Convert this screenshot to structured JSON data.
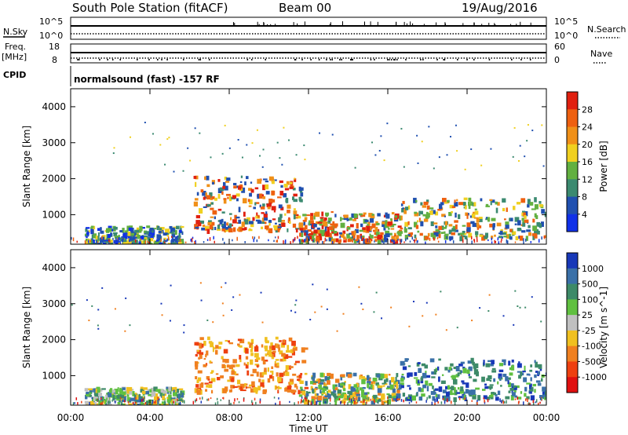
{
  "header": {
    "station": "South Pole Station (fitACF)",
    "beam": "Beam 00",
    "date": "19/Aug/2016"
  },
  "labels": {
    "nsky": "N.Sky",
    "nsearch": "N.Search",
    "freq_line1": "Freq.",
    "freq_line2": "[MHz]",
    "nave": "Nave",
    "cpid": "CPID",
    "program": "normalsound (fast) -157 RF",
    "noise_top": "10^5",
    "noise_bottom": "10^0",
    "freq_top": "18",
    "freq_bottom": "8",
    "nave_top": "60",
    "nave_bottom": "0"
  },
  "chart_data": [
    {
      "type": "heatmap",
      "title": "",
      "xlabel": "Time UT",
      "ylabel": "Slant Range [km]",
      "xlim": [
        0,
        24
      ],
      "ylim": [
        180,
        4500
      ],
      "x_ticks": [
        "00:00",
        "04:00",
        "08:00",
        "12:00",
        "16:00",
        "20:00",
        "00:00"
      ],
      "y_ticks": [
        1000,
        2000,
        3000,
        4000
      ],
      "colorbar": {
        "label": "Power [dB]",
        "ticks": [
          "4",
          "8",
          "12",
          "16",
          "20",
          "24",
          "28"
        ],
        "colors": [
          "#1030e8",
          "#2050b0",
          "#3b8a70",
          "#62b040",
          "#f0d020",
          "#f09018",
          "#ee6010",
          "#e02010"
        ]
      },
      "echo_regions": [
        {
          "time": [
            0.7,
            5.6
          ],
          "range": [
            220,
            700
          ],
          "value": "2-16 dB"
        },
        {
          "time": [
            6.2,
            11.8
          ],
          "range": [
            600,
            2100
          ],
          "value": "16-28 dB"
        },
        {
          "time": [
            11.5,
            16.5
          ],
          "range": [
            300,
            1100
          ],
          "value": "8-24 dB"
        },
        {
          "time": [
            16.5,
            24.0
          ],
          "range": [
            400,
            1500
          ],
          "value": "8-24 dB"
        }
      ]
    },
    {
      "type": "heatmap",
      "title": "",
      "xlabel": "Time UT",
      "ylabel": "Slant Range [km]",
      "xlim": [
        0,
        24
      ],
      "ylim": [
        180,
        4500
      ],
      "x_ticks": [
        "00:00",
        "04:00",
        "08:00",
        "12:00",
        "16:00",
        "20:00",
        "00:00"
      ],
      "y_ticks": [
        1000,
        2000,
        3000,
        4000
      ],
      "colorbar": {
        "label": "Velocity [m s^-1]",
        "ticks": [
          "1000",
          "500",
          "100",
          "25",
          "-25",
          "-100",
          "-500",
          "-1000"
        ],
        "colors": [
          "#1838b8",
          "#3a70a8",
          "#3d8a68",
          "#60c040",
          "#c0c0c0",
          "#f0c020",
          "#f08020",
          "#ee4010",
          "#e01010"
        ]
      },
      "echo_regions": [
        {
          "time": [
            0.7,
            5.6
          ],
          "range": [
            220,
            700
          ],
          "value": "-25 to 100 m/s"
        },
        {
          "time": [
            6.2,
            11.8
          ],
          "range": [
            600,
            2100
          ],
          "value": "-500 to -100 m/s"
        },
        {
          "time": [
            11.5,
            16.5
          ],
          "range": [
            300,
            1100
          ],
          "value": "-100 to 25 m/s"
        },
        {
          "time": [
            16.5,
            24.0
          ],
          "range": [
            400,
            1500
          ],
          "value": "100 to 1000 m/s"
        }
      ]
    }
  ]
}
